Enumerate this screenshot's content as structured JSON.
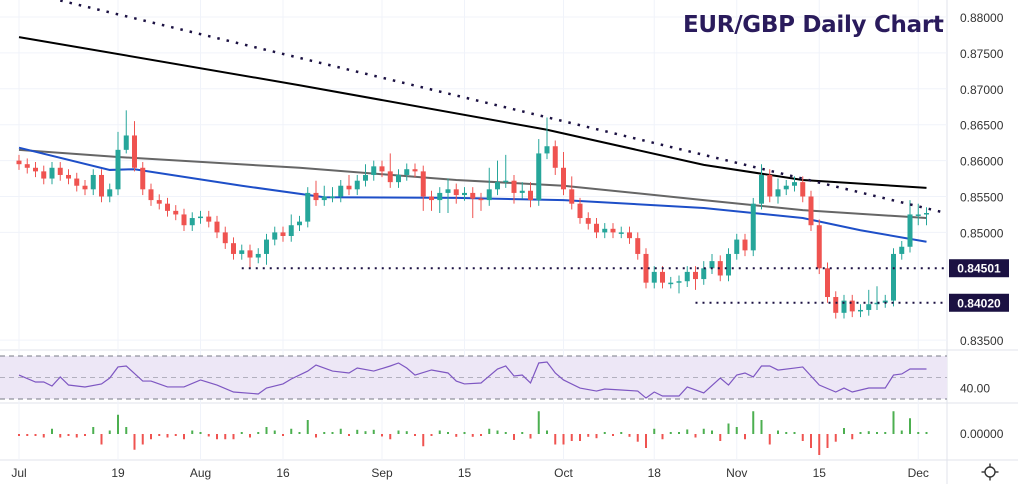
{
  "chart_data": {
    "type": "candlestick",
    "title": "EUR/GBP Daily Chart",
    "title_color": "#2a1b5c",
    "colors": {
      "up": "#26a69a",
      "down": "#ef5350",
      "ma_200": "#000000",
      "ma_100": "#666666",
      "ma_50": "#1e4fc8",
      "rsi": "#7e57c2",
      "rsi_band": "#ede7f6",
      "label_bg": "#1b1142"
    },
    "ylim": [
      0.8325,
      0.8825
    ],
    "y_ticks": [
      "0.88000",
      "0.87500",
      "0.87000",
      "0.86500",
      "0.86000",
      "0.85500",
      "0.85000",
      "0.83500"
    ],
    "x_ticks": [
      {
        "label": "Jul",
        "index": 0
      },
      {
        "label": "19",
        "index": 12
      },
      {
        "label": "Aug",
        "index": 22
      },
      {
        "label": "16",
        "index": 32
      },
      {
        "label": "Sep",
        "index": 44
      },
      {
        "label": "15",
        "index": 54
      },
      {
        "label": "Oct",
        "index": 66
      },
      {
        "label": "18",
        "index": 77
      },
      {
        "label": "Nov",
        "index": 87
      },
      {
        "label": "15",
        "index": 97
      },
      {
        "label": "Dec",
        "index": 109
      }
    ],
    "open": [
      0.86,
      0.8595,
      0.859,
      0.8585,
      0.8575,
      0.859,
      0.858,
      0.8575,
      0.8565,
      0.856,
      0.858,
      0.855,
      0.856,
      0.8615,
      0.8635,
      0.859,
      0.856,
      0.8545,
      0.854,
      0.853,
      0.8525,
      0.851,
      0.852,
      0.8522,
      0.8515,
      0.85,
      0.8485,
      0.847,
      0.8475,
      0.8465,
      0.847,
      0.849,
      0.85,
      0.8495,
      0.851,
      0.8515,
      0.8555,
      0.8545,
      0.855,
      0.855,
      0.8565,
      0.856,
      0.8572,
      0.858,
      0.8592,
      0.8585,
      0.857,
      0.858,
      0.8588,
      0.8585,
      0.855,
      0.8545,
      0.8555,
      0.856,
      0.8552,
      0.8555,
      0.8547,
      0.8545,
      0.856,
      0.857,
      0.8572,
      0.8555,
      0.8558,
      0.8545,
      0.861,
      0.862,
      0.859,
      0.856,
      0.854,
      0.852,
      0.8512,
      0.85,
      0.8505,
      0.85,
      0.85,
      0.8492,
      0.847,
      0.843,
      0.8445,
      0.843,
      0.843,
      0.8432,
      0.8445,
      0.8435,
      0.845,
      0.846,
      0.844,
      0.847,
      0.849,
      0.8475,
      0.854,
      0.858,
      0.855,
      0.856,
      0.8565,
      0.857,
      0.855,
      0.851,
      0.845,
      0.841,
      0.8388,
      0.8405,
      0.839,
      0.8392,
      0.84,
      0.8402,
      0.8405,
      0.847,
      0.848,
      0.8525,
      0.8525
    ],
    "high": [
      0.8608,
      0.8603,
      0.8598,
      0.8593,
      0.8598,
      0.8598,
      0.8588,
      0.8583,
      0.8573,
      0.8588,
      0.8588,
      0.8568,
      0.864,
      0.867,
      0.8655,
      0.8598,
      0.8568,
      0.8553,
      0.8548,
      0.8538,
      0.8533,
      0.8528,
      0.853,
      0.853,
      0.8523,
      0.8508,
      0.8493,
      0.8483,
      0.8483,
      0.8478,
      0.8498,
      0.8508,
      0.8508,
      0.8525,
      0.8523,
      0.8563,
      0.8572,
      0.8565,
      0.8563,
      0.8573,
      0.858,
      0.858,
      0.8595,
      0.86,
      0.86,
      0.861,
      0.8588,
      0.8596,
      0.8596,
      0.8593,
      0.8558,
      0.8563,
      0.8575,
      0.8568,
      0.8563,
      0.8563,
      0.8555,
      0.859,
      0.86,
      0.8608,
      0.858,
      0.857,
      0.857,
      0.863,
      0.866,
      0.8628,
      0.8612,
      0.8578,
      0.8548,
      0.8528,
      0.852,
      0.8513,
      0.8513,
      0.8508,
      0.8508,
      0.85,
      0.8478,
      0.8453,
      0.8453,
      0.8438,
      0.844,
      0.8453,
      0.8453,
      0.846,
      0.847,
      0.8468,
      0.8478,
      0.8498,
      0.8498,
      0.8548,
      0.8595,
      0.8588,
      0.8575,
      0.8573,
      0.8578,
      0.8578,
      0.8558,
      0.8518,
      0.8458,
      0.8418,
      0.8413,
      0.8413,
      0.84,
      0.842,
      0.8425,
      0.8413,
      0.8478,
      0.8488,
      0.8545,
      0.854,
      0.8535
    ],
    "low": [
      0.8587,
      0.8582,
      0.8577,
      0.8567,
      0.8567,
      0.8572,
      0.8567,
      0.8557,
      0.8552,
      0.8552,
      0.8542,
      0.8542,
      0.8552,
      0.861,
      0.8585,
      0.8552,
      0.8537,
      0.8532,
      0.8522,
      0.8517,
      0.8502,
      0.8502,
      0.8512,
      0.8507,
      0.8492,
      0.8477,
      0.8462,
      0.8462,
      0.845,
      0.8457,
      0.8455,
      0.8482,
      0.8487,
      0.8487,
      0.8502,
      0.8507,
      0.8537,
      0.8537,
      0.8542,
      0.8542,
      0.8552,
      0.8552,
      0.8564,
      0.8572,
      0.8577,
      0.8562,
      0.8562,
      0.8572,
      0.8577,
      0.853,
      0.853,
      0.8527,
      0.8527,
      0.854,
      0.8544,
      0.852,
      0.853,
      0.8537,
      0.8552,
      0.8562,
      0.854,
      0.8547,
      0.8535,
      0.8537,
      0.8602,
      0.858,
      0.8552,
      0.8532,
      0.8512,
      0.8504,
      0.8492,
      0.8492,
      0.8492,
      0.8492,
      0.8484,
      0.8462,
      0.8422,
      0.8422,
      0.8422,
      0.8422,
      0.8415,
      0.8424,
      0.842,
      0.8427,
      0.8442,
      0.8432,
      0.8432,
      0.8462,
      0.8467,
      0.8467,
      0.8532,
      0.8542,
      0.854,
      0.8552,
      0.8557,
      0.8542,
      0.8502,
      0.8442,
      0.8402,
      0.838,
      0.838,
      0.8382,
      0.8382,
      0.8384,
      0.8392,
      0.8395,
      0.8397,
      0.8462,
      0.8472,
      0.851,
      0.851
    ],
    "close": [
      0.8595,
      0.859,
      0.8585,
      0.8575,
      0.859,
      0.858,
      0.8575,
      0.8565,
      0.856,
      0.858,
      0.855,
      0.856,
      0.8615,
      0.8635,
      0.859,
      0.856,
      0.8545,
      0.854,
      0.853,
      0.8525,
      0.851,
      0.852,
      0.8522,
      0.8515,
      0.85,
      0.8485,
      0.847,
      0.8475,
      0.8465,
      0.847,
      0.849,
      0.85,
      0.8495,
      0.851,
      0.8515,
      0.8555,
      0.8545,
      0.855,
      0.855,
      0.8565,
      0.856,
      0.8572,
      0.858,
      0.8592,
      0.8585,
      0.857,
      0.858,
      0.8588,
      0.8585,
      0.855,
      0.8545,
      0.8555,
      0.856,
      0.8552,
      0.8555,
      0.8547,
      0.8545,
      0.856,
      0.857,
      0.8572,
      0.8555,
      0.8558,
      0.8545,
      0.861,
      0.862,
      0.859,
      0.856,
      0.854,
      0.852,
      0.8512,
      0.85,
      0.8505,
      0.85,
      0.85,
      0.8492,
      0.847,
      0.843,
      0.8445,
      0.843,
      0.843,
      0.8432,
      0.8445,
      0.8435,
      0.845,
      0.846,
      0.844,
      0.847,
      0.849,
      0.8475,
      0.854,
      0.858,
      0.855,
      0.856,
      0.8565,
      0.857,
      0.855,
      0.851,
      0.845,
      0.841,
      0.8388,
      0.8405,
      0.839,
      0.8392,
      0.84,
      0.8402,
      0.8405,
      0.847,
      0.848,
      0.8525,
      0.8525,
      0.8527
    ],
    "moving_averages": [
      {
        "key": "ma_200",
        "points": [
          [
            0,
            0.8772
          ],
          [
            34,
            0.8705
          ],
          [
            64,
            0.8643
          ],
          [
            83,
            0.8594
          ],
          [
            95,
            0.8573
          ],
          [
            110,
            0.8562
          ]
        ]
      },
      {
        "key": "ma_100",
        "points": [
          [
            0,
            0.8615
          ],
          [
            12,
            0.8605
          ],
          [
            34,
            0.859
          ],
          [
            53,
            0.8573
          ],
          [
            66,
            0.8565
          ],
          [
            83,
            0.8545
          ],
          [
            95,
            0.8531
          ],
          [
            110,
            0.852
          ]
        ]
      },
      {
        "key": "ma_50",
        "points": [
          [
            0,
            0.8618
          ],
          [
            11,
            0.8587
          ],
          [
            14,
            0.8588
          ],
          [
            27,
            0.8565
          ],
          [
            37,
            0.8549
          ],
          [
            53,
            0.8548
          ],
          [
            66,
            0.8545
          ],
          [
            83,
            0.8534
          ],
          [
            95,
            0.852
          ],
          [
            102,
            0.8503
          ],
          [
            110,
            0.8487
          ]
        ]
      }
    ],
    "trendline": [
      [
        5,
        0.8823
      ],
      [
        112,
        0.8528
      ]
    ],
    "support_levels": [
      {
        "label": "0.84501",
        "value": 0.84501,
        "from_index": 27
      },
      {
        "label": "0.84020",
        "value": 0.8402,
        "from_index": 82
      }
    ],
    "rsi": {
      "tick_label": "40.00",
      "bands": [
        30,
        50,
        70
      ],
      "points": [
        [
          0,
          52.3
        ],
        [
          2,
          45.8
        ],
        [
          3,
          45.8
        ],
        [
          4,
          42.1
        ],
        [
          5,
          50.5
        ],
        [
          6,
          43
        ],
        [
          8,
          41.2
        ],
        [
          10,
          44
        ],
        [
          11,
          49.5
        ],
        [
          12,
          59.8
        ],
        [
          13,
          60.7
        ],
        [
          15,
          46.7
        ],
        [
          16,
          46.7
        ],
        [
          18,
          41.2
        ],
        [
          20,
          41.2
        ],
        [
          22,
          47.7
        ],
        [
          24,
          43
        ],
        [
          26,
          36.5
        ],
        [
          29,
          34.7
        ],
        [
          30,
          40.2
        ],
        [
          32,
          44
        ],
        [
          33,
          48.6
        ],
        [
          35,
          56
        ],
        [
          36,
          61.6
        ],
        [
          38,
          56
        ],
        [
          40,
          54.2
        ],
        [
          41,
          58.8
        ],
        [
          43,
          56
        ],
        [
          45,
          60.7
        ],
        [
          46,
          63.5
        ],
        [
          47,
          58.8
        ],
        [
          48,
          52.3
        ],
        [
          50,
          57
        ],
        [
          52,
          54.2
        ],
        [
          53,
          46.7
        ],
        [
          54,
          44
        ],
        [
          56,
          44.9
        ],
        [
          58,
          57.9
        ],
        [
          59,
          60.7
        ],
        [
          60,
          51.4
        ],
        [
          61,
          52.3
        ],
        [
          62,
          44.9
        ],
        [
          63,
          63.5
        ],
        [
          64,
          64.4
        ],
        [
          65,
          54.2
        ],
        [
          66,
          47.7
        ],
        [
          68,
          40.2
        ],
        [
          70,
          37.4
        ],
        [
          71,
          39.3
        ],
        [
          73,
          38.4
        ],
        [
          75,
          37.4
        ],
        [
          76,
          30.9
        ],
        [
          77,
          36.5
        ],
        [
          78,
          32.8
        ],
        [
          80,
          32.8
        ],
        [
          81,
          41.2
        ],
        [
          83,
          35.6
        ],
        [
          85,
          49.5
        ],
        [
          86,
          43
        ],
        [
          87,
          52.3
        ],
        [
          88,
          54.2
        ],
        [
          89,
          50.5
        ],
        [
          90,
          60.7
        ],
        [
          91,
          60.7
        ],
        [
          92,
          56.9
        ],
        [
          94,
          58.8
        ],
        [
          95,
          59.8
        ],
        [
          96,
          51.4
        ],
        [
          97,
          43
        ],
        [
          99,
          36.5
        ],
        [
          100,
          40.2
        ],
        [
          101,
          36.5
        ],
        [
          103,
          40.2
        ],
        [
          105,
          40.2
        ],
        [
          106,
          52.3
        ],
        [
          107,
          53.3
        ],
        [
          108,
          57.9
        ],
        [
          110,
          57.9
        ]
      ]
    },
    "histogram": {
      "tick_label": "0.00000"
    }
  },
  "icons": {
    "settings": "gear-icon"
  }
}
